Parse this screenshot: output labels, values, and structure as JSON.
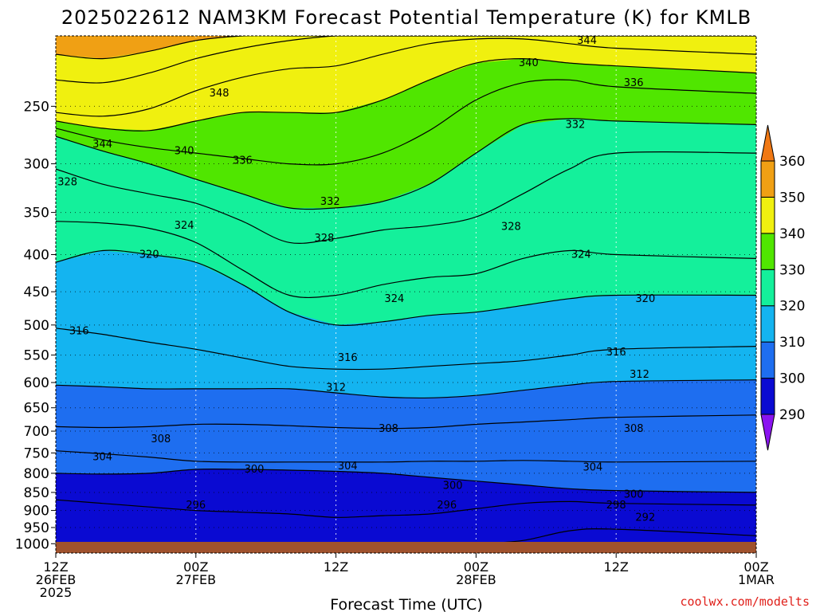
{
  "chart_data": {
    "type": "area",
    "title": "2025022612 NAM3KM Forecast Potential Temperature (K) for KMLB",
    "xlabel": "Forecast Time (UTC)",
    "x_ticks": [
      {
        "hours": 0,
        "line1": "12Z",
        "line2": "26FEB",
        "line3": "2025"
      },
      {
        "hours": 12,
        "line1": "00Z",
        "line2": "27FEB",
        "line3": ""
      },
      {
        "hours": 24,
        "line1": "12Z",
        "line2": "",
        "line3": ""
      },
      {
        "hours": 36,
        "line1": "00Z",
        "line2": "28FEB",
        "line3": ""
      },
      {
        "hours": 48,
        "line1": "12Z",
        "line2": "",
        "line3": ""
      },
      {
        "hours": 60,
        "line1": "00Z",
        "line2": "1MAR",
        "line3": ""
      }
    ],
    "xlim": [
      0,
      60
    ],
    "ylabel": "",
    "y_axis_scale": "log-pressure, inverted",
    "y_ticks": [
      250,
      300,
      350,
      400,
      450,
      500,
      550,
      600,
      650,
      700,
      750,
      800,
      850,
      900,
      950,
      1000
    ],
    "ylim": [
      200,
      1030
    ],
    "grid": true,
    "colorbar": {
      "levels": [
        290,
        300,
        310,
        320,
        330,
        340,
        350,
        360
      ],
      "labels": [
        "290",
        "300",
        "310",
        "320",
        "330",
        "340",
        "350",
        "360"
      ],
      "colors": [
        "#8a14f0",
        "#0a0ad2",
        "#1e6ef0",
        "#14b4f0",
        "#14f09b",
        "#50e600",
        "#f0f00f",
        "#f0a014",
        "#f07814"
      ]
    },
    "isentropes": [
      {
        "theta": 292,
        "p": [
          1000,
          1000,
          1000,
          1000,
          1000,
          1000,
          1000,
          1000,
          1000,
          1000,
          990,
          960,
          955,
          975
        ]
      },
      {
        "theta": 296,
        "p": [
          870,
          880,
          890,
          900,
          905,
          910,
          920,
          915,
          910,
          895,
          880,
          875,
          880,
          885
        ]
      },
      {
        "theta": 300,
        "p": [
          800,
          802,
          800,
          790,
          790,
          792,
          795,
          800,
          810,
          820,
          830,
          840,
          845,
          850
        ]
      },
      {
        "theta": 304,
        "p": [
          745,
          752,
          760,
          770,
          772,
          772,
          772,
          772,
          770,
          770,
          768,
          770,
          772,
          770
        ]
      },
      {
        "theta": 308,
        "p": [
          690,
          692,
          690,
          685,
          685,
          688,
          692,
          694,
          692,
          685,
          680,
          675,
          670,
          665
        ]
      },
      {
        "theta": 312,
        "p": [
          605,
          608,
          612,
          612,
          612,
          612,
          620,
          628,
          630,
          625,
          615,
          605,
          598,
          595
        ]
      },
      {
        "theta": 316,
        "p": [
          505,
          515,
          528,
          540,
          555,
          570,
          575,
          575,
          570,
          565,
          560,
          550,
          540,
          535
        ]
      },
      {
        "theta": 320,
        "p": [
          410,
          395,
          400,
          410,
          440,
          480,
          500,
          495,
          485,
          480,
          470,
          460,
          455,
          455
        ]
      },
      {
        "theta": 324,
        "p": [
          360,
          362,
          368,
          385,
          420,
          455,
          455,
          440,
          430,
          425,
          405,
          395,
          400,
          405
        ]
      },
      {
        "theta": 328,
        "p": [
          305,
          320,
          330,
          340,
          360,
          385,
          380,
          370,
          365,
          355,
          330,
          305,
          290,
          290
        ]
      },
      {
        "theta": 332,
        "p": [
          275,
          288,
          300,
          315,
          330,
          345,
          345,
          338,
          320,
          290,
          265,
          260,
          262,
          265
        ]
      },
      {
        "theta": 336,
        "p": [
          268,
          278,
          285,
          290,
          295,
          300,
          300,
          290,
          270,
          245,
          232,
          230,
          235,
          240
        ]
      },
      {
        "theta": 340,
        "p": [
          262,
          268,
          270,
          262,
          255,
          255,
          255,
          245,
          230,
          218,
          215,
          218,
          220,
          225
        ]
      },
      {
        "theta": 344,
        "p": [
          255,
          258,
          252,
          238,
          228,
          222,
          220,
          212,
          205,
          202,
          202,
          205,
          208,
          212
        ]
      },
      {
        "theta": 348,
        "p": [
          230,
          232,
          225,
          215,
          208,
          203,
          200,
          200,
          200,
          200,
          200,
          200,
          200,
          200
        ]
      },
      {
        "theta": 352,
        "p": [
          212,
          215,
          210,
          203,
          200,
          200,
          200,
          200,
          200,
          200,
          200,
          200,
          200,
          200
        ]
      }
    ],
    "isentrope_hours": [
      0,
      4,
      8,
      12,
      16,
      20,
      24,
      28,
      32,
      36,
      40,
      44,
      48,
      60
    ],
    "contour_labels": [
      {
        "text": "344",
        "hours": 45.5,
        "p": 203
      },
      {
        "text": "340",
        "hours": 40.5,
        "p": 218
      },
      {
        "text": "336",
        "hours": 49.5,
        "p": 232
      },
      {
        "text": "348",
        "hours": 14.0,
        "p": 240
      },
      {
        "text": "332",
        "hours": 44.5,
        "p": 265
      },
      {
        "text": "344",
        "hours": 4.0,
        "p": 282
      },
      {
        "text": "340",
        "hours": 11.0,
        "p": 288
      },
      {
        "text": "336",
        "hours": 16.0,
        "p": 297
      },
      {
        "text": "328",
        "hours": 1.0,
        "p": 318
      },
      {
        "text": "332",
        "hours": 23.5,
        "p": 338
      },
      {
        "text": "324",
        "hours": 11.0,
        "p": 365
      },
      {
        "text": "328",
        "hours": 39.0,
        "p": 366
      },
      {
        "text": "328",
        "hours": 23.0,
        "p": 380
      },
      {
        "text": "320",
        "hours": 8.0,
        "p": 400
      },
      {
        "text": "324",
        "hours": 45.0,
        "p": 400
      },
      {
        "text": "324",
        "hours": 29.0,
        "p": 460
      },
      {
        "text": "320",
        "hours": 50.5,
        "p": 460
      },
      {
        "text": "316",
        "hours": 2.0,
        "p": 510
      },
      {
        "text": "316",
        "hours": 48.0,
        "p": 545
      },
      {
        "text": "316",
        "hours": 25.0,
        "p": 555
      },
      {
        "text": "312",
        "hours": 50.0,
        "p": 585
      },
      {
        "text": "312",
        "hours": 24.0,
        "p": 610
      },
      {
        "text": "308",
        "hours": 28.5,
        "p": 695
      },
      {
        "text": "308",
        "hours": 49.5,
        "p": 695
      },
      {
        "text": "308",
        "hours": 9.0,
        "p": 718
      },
      {
        "text": "304",
        "hours": 4.0,
        "p": 760
      },
      {
        "text": "304",
        "hours": 25.0,
        "p": 782
      },
      {
        "text": "304",
        "hours": 46.0,
        "p": 785
      },
      {
        "text": "300",
        "hours": 17.0,
        "p": 790
      },
      {
        "text": "300",
        "hours": 34.0,
        "p": 832
      },
      {
        "text": "300",
        "hours": 49.5,
        "p": 855
      },
      {
        "text": "296",
        "hours": 12.0,
        "p": 885
      },
      {
        "text": "296",
        "hours": 33.5,
        "p": 885
      },
      {
        "text": "298",
        "hours": 48.0,
        "p": 885
      },
      {
        "text": "292",
        "hours": 50.5,
        "p": 920
      }
    ]
  },
  "credit": "coolwx.com/modelts"
}
